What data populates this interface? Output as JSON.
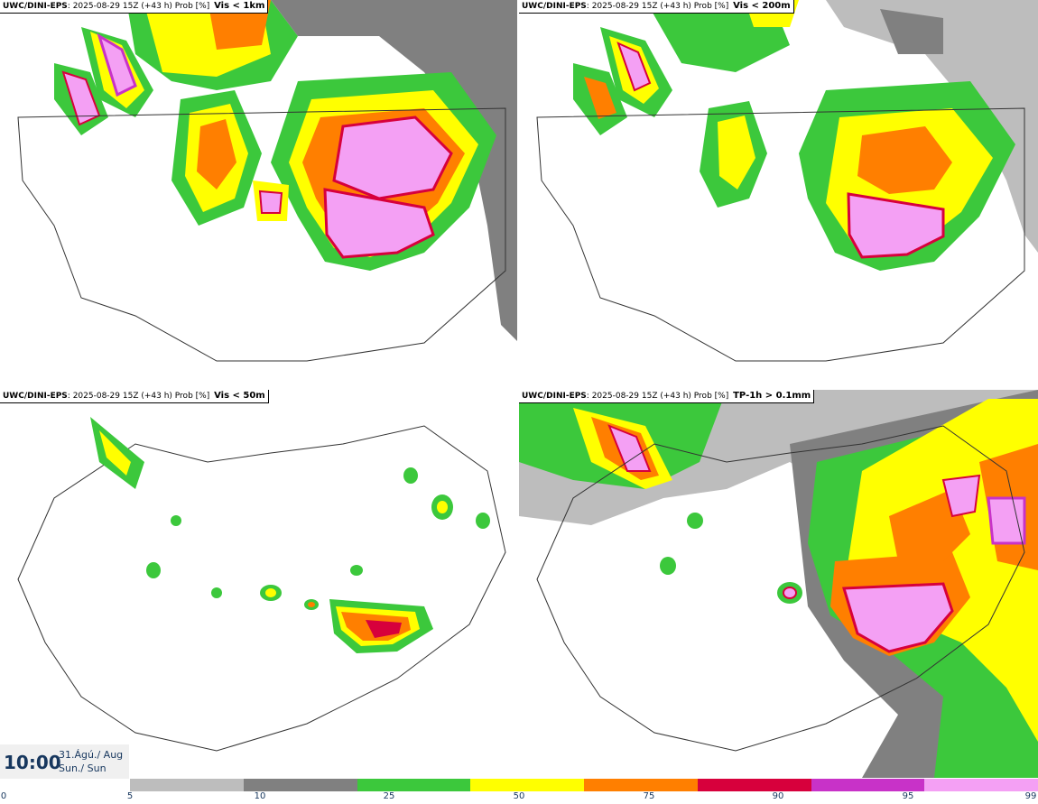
{
  "panels": [
    {
      "model": "UWC/DINI-EPS",
      "run": "2025-08-29 15Z (+43 h) Prob [%]",
      "variable": "Vis < 1km"
    },
    {
      "model": "UWC/DINI-EPS",
      "run": "2025-08-29 15Z (+43 h) Prob [%]",
      "variable": "Vis < 200m"
    },
    {
      "model": "UWC/DINI-EPS",
      "run": "2025-08-29 15Z (+43 h) Prob [%]",
      "variable": "Vis < 50m"
    },
    {
      "model": "UWC/DINI-EPS",
      "run": "2025-08-29 15Z (+43 h) Prob [%]",
      "variable": "TP-1h > 0.1mm"
    }
  ],
  "valid_time": {
    "time": "10:00",
    "date_line1": "31.Ágú./ Aug",
    "date_line2": "Sun./ Sun"
  },
  "colorbar": {
    "ticks": [
      "0",
      "5",
      "10",
      "25",
      "50",
      "75",
      "90",
      "95",
      "99"
    ],
    "colors": [
      "#bdbdbd",
      "#808080",
      "#3cc83c",
      "#ffff00",
      "#ff7f00",
      "#d7003c",
      "#c832c8",
      "#f4a0f4"
    ]
  }
}
